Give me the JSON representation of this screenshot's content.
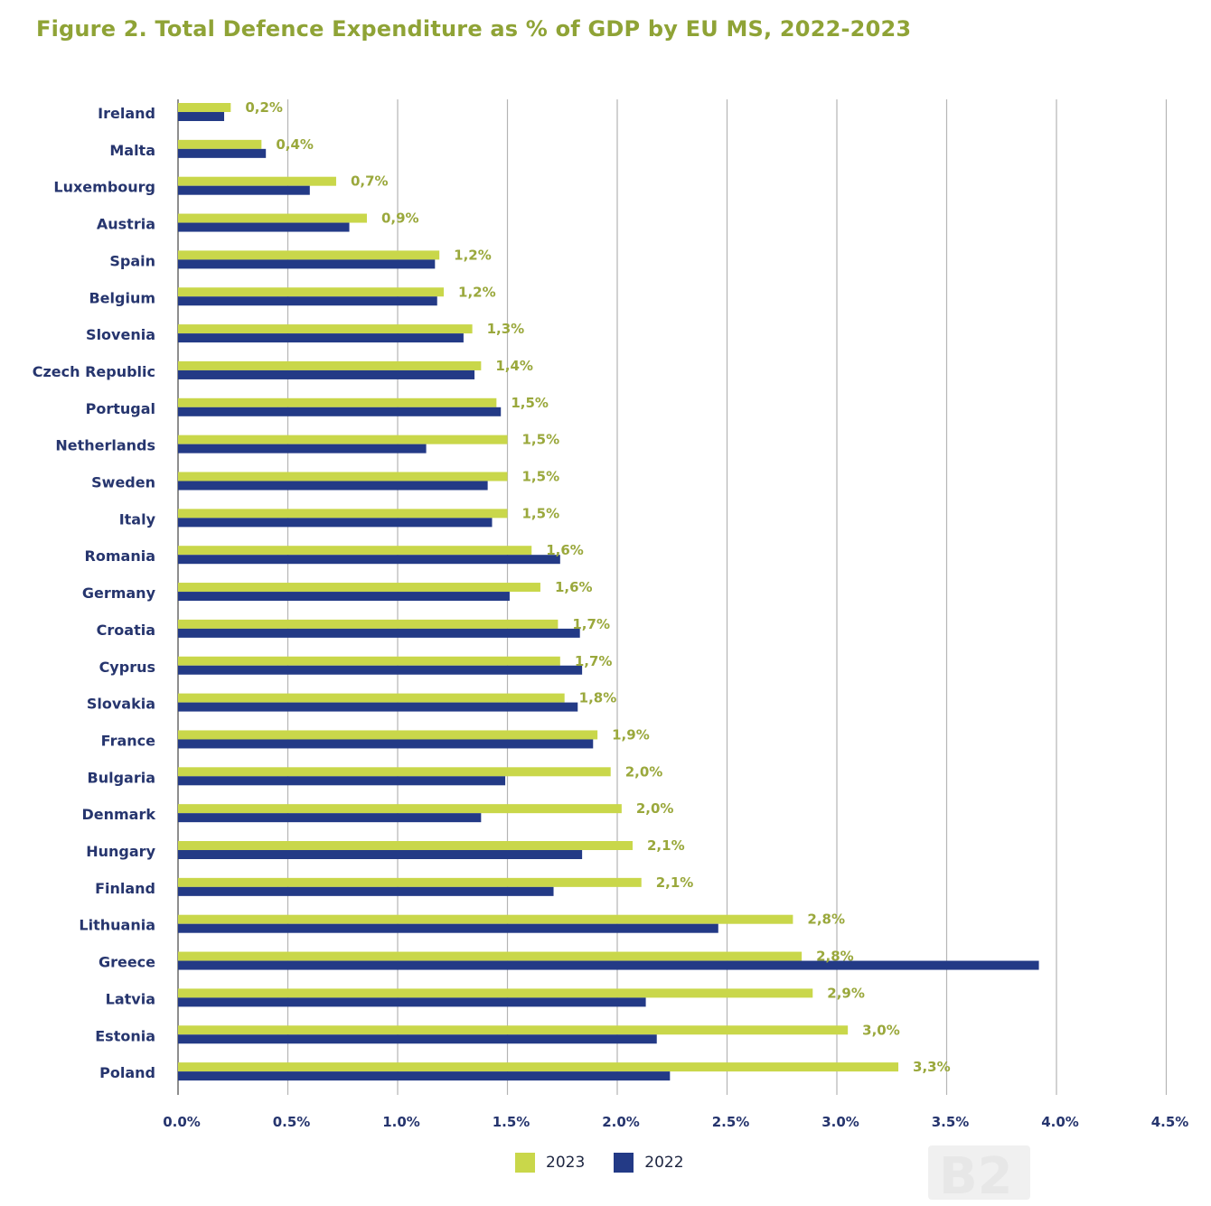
{
  "title": "Figure 2. Total Defence Expenditure as % of GDP by EU MS, 2022-2023",
  "colors": {
    "2023": "#c9d74a",
    "2022": "#233a86",
    "title": "#8fa336",
    "label": "#26356e",
    "value": "#9aa83c",
    "grid": "#b5b5b5"
  },
  "legend": [
    {
      "label": "2023",
      "color_key": "2023"
    },
    {
      "label": "2022",
      "color_key": "2022"
    }
  ],
  "watermark": "B2",
  "chart_data": {
    "type": "bar",
    "orientation": "horizontal",
    "title": "Figure 2. Total Defence Expenditure as % of GDP by EU MS, 2022-2023",
    "categories": [
      "Ireland",
      "Malta",
      "Luxembourg",
      "Austria",
      "Spain",
      "Belgium",
      "Slovenia",
      "Czech Republic",
      "Portugal",
      "Netherlands",
      "Sweden",
      "Italy",
      "Romania",
      "Germany",
      "Croatia",
      "Cyprus",
      "Slovakia",
      "France",
      "Bulgaria",
      "Denmark",
      "Hungary",
      "Finland",
      "Lithuania",
      "Greece",
      "Latvia",
      "Estonia",
      "Poland"
    ],
    "series": [
      {
        "name": "2023",
        "values": [
          0.24,
          0.38,
          0.72,
          0.86,
          1.19,
          1.21,
          1.34,
          1.38,
          1.45,
          1.5,
          1.5,
          1.5,
          1.61,
          1.65,
          1.73,
          1.74,
          1.76,
          1.91,
          1.97,
          2.02,
          2.07,
          2.11,
          2.8,
          2.84,
          2.89,
          3.05,
          3.28
        ]
      },
      {
        "name": "2022",
        "values": [
          0.21,
          0.4,
          0.6,
          0.78,
          1.17,
          1.18,
          1.3,
          1.35,
          1.47,
          1.13,
          1.41,
          1.43,
          1.74,
          1.51,
          1.83,
          1.84,
          1.82,
          1.89,
          1.49,
          1.38,
          1.84,
          1.71,
          2.46,
          3.92,
          2.13,
          2.18,
          2.24
        ]
      }
    ],
    "data_labels": [
      "0,2%",
      "0,4%",
      "0,7%",
      "0,9%",
      "1,2%",
      "1,2%",
      "1,3%",
      "1,4%",
      "1,5%",
      "1,5%",
      "1,5%",
      "1,5%",
      "1,6%",
      "1,6%",
      "1,7%",
      "1,7%",
      "1,8%",
      "1,9%",
      "2,0%",
      "2,0%",
      "2,1%",
      "2,1%",
      "2,8%",
      "2,8%",
      "2,9%",
      "3,0%",
      "3,3%"
    ],
    "xlim": [
      0,
      4.5
    ],
    "xticks": [
      "0.0%",
      "0.5%",
      "1.0%",
      "1.5%",
      "2.0%",
      "2.5%",
      "3.0%",
      "3.5%",
      "4.0%",
      "4.5%"
    ],
    "grid": true,
    "legend_position": "bottom"
  }
}
